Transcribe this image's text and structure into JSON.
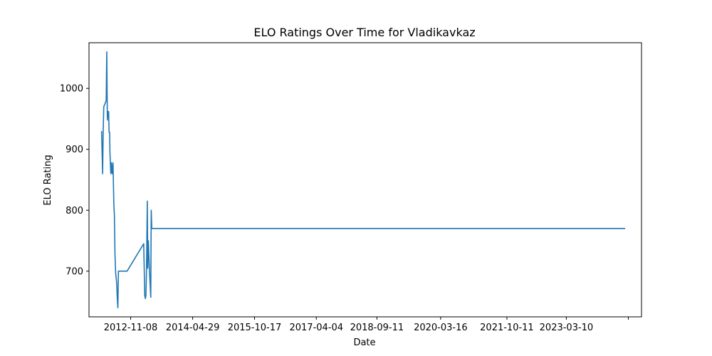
{
  "chart_data": {
    "type": "line",
    "title": "ELO Ratings Over Time for Vladikavkaz",
    "xlabel": "Date",
    "ylabel": "ELO Rating",
    "x_tick_labels": [
      "2012-11-08",
      "2014-04-29",
      "2015-10-17",
      "2017-04-04",
      "2018-09-11",
      "2020-03-16",
      "2021-10-11",
      "2023-03-10"
    ],
    "y_ticks": [
      700,
      800,
      900,
      1000
    ],
    "ylim": [
      625,
      1075
    ],
    "xlim": [
      "2011-11-13",
      "2024-12-20"
    ],
    "grid": false,
    "series": [
      {
        "color": "#1f77b4",
        "x": [
          "2012-03-01",
          "2012-03-10",
          "2012-03-15",
          "2012-03-20",
          "2012-04-10",
          "2012-04-15",
          "2012-04-20",
          "2012-04-25",
          "2012-05-01",
          "2012-05-05",
          "2012-05-10",
          "2012-05-12",
          "2012-05-20",
          "2012-05-25",
          "2012-06-01",
          "2012-06-08",
          "2012-06-15",
          "2012-06-20",
          "2012-06-25",
          "2012-07-01",
          "2012-07-10",
          "2012-07-15",
          "2012-07-20",
          "2012-07-25",
          "2012-08-01",
          "2012-08-05",
          "2012-08-10",
          "2012-08-15",
          "2012-08-20",
          "2012-09-01",
          "2012-09-05",
          "2012-09-10",
          "2012-09-20",
          "2012-09-25",
          "2012-10-01",
          "2012-10-05",
          "2012-10-08",
          "2013-03-01",
          "2013-03-10",
          "2013-03-15",
          "2013-03-20",
          "2013-03-25",
          "2013-04-01",
          "2013-04-05",
          "2013-04-10",
          "2013-04-20",
          "2013-05-01",
          "2013-05-05",
          "2013-05-10",
          "2013-05-15",
          "2013-05-20",
          "2013-05-25",
          "2013-06-01",
          "2013-06-05",
          "2013-06-10",
          "2024-08-01"
        ],
        "y": [
          930,
          860,
          930,
          970,
          980,
          1060,
          948,
          962,
          962,
          928,
          928,
          897,
          860,
          878,
          860,
          878,
          810,
          792,
          728,
          697,
          680,
          655,
          640,
          700,
          700,
          700,
          700,
          700,
          700,
          700,
          700,
          700,
          700,
          700,
          700,
          700,
          700,
          745,
          660,
          655,
          660,
          700,
          815,
          705,
          750,
          700,
          657,
          800,
          770,
          770,
          770,
          770,
          770,
          770,
          770,
          770
        ]
      }
    ]
  }
}
